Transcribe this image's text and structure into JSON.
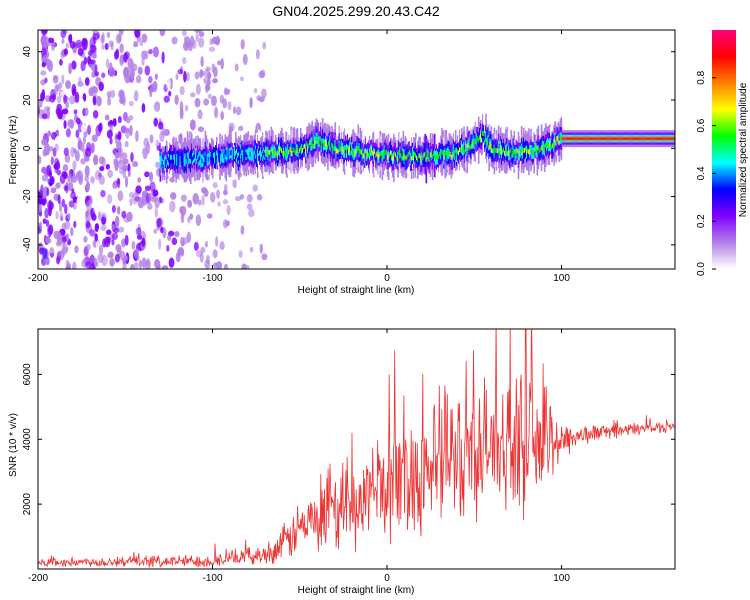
{
  "title": "GN04.2025.299.20.43.C42",
  "chart_data": [
    {
      "type": "heatmap",
      "name": "spectrogram",
      "xlabel": "Height of straight line (km)",
      "ylabel": "Frequency (Hz)",
      "xlim": [
        -200,
        165
      ],
      "ylim": [
        -50,
        49
      ],
      "xticks": [
        -200,
        -100,
        0,
        100
      ],
      "xtick_labels": [
        "-200",
        "-100",
        "0",
        "100"
      ],
      "yticks": [
        -40,
        -20,
        0,
        20,
        40
      ],
      "ytick_labels": [
        "-40",
        "-20",
        "0",
        "20",
        "40"
      ],
      "ridge": {
        "x": [
          -130,
          -110,
          -90,
          -70,
          -50,
          -40,
          -30,
          -20,
          -10,
          0,
          10,
          20,
          30,
          40,
          50,
          55,
          60,
          70,
          80,
          90,
          95,
          100,
          165
        ],
        "y": [
          -5,
          -4,
          -3,
          -2,
          -1,
          3,
          0,
          -1,
          -2,
          -3,
          -3,
          -4,
          -3,
          -2,
          2,
          5,
          0,
          -2,
          -1,
          0,
          2,
          4,
          4
        ]
      },
      "noise_band_x": [
        -200,
        -70
      ],
      "colorbar": {
        "label": "Normalized spectral amplitude",
        "range": [
          0.0,
          1.0
        ],
        "ticks": [
          0.0,
          0.2,
          0.4,
          0.6,
          0.8
        ],
        "tick_labels": [
          "0.0",
          "0.2",
          "0.4",
          "0.6",
          "0.8"
        ],
        "colors": [
          "#ffffff",
          "#b27fe6",
          "#7f00ff",
          "#0000ff",
          "#00ffff",
          "#00ff00",
          "#ffff00",
          "#ff7f00",
          "#ff0000",
          "#ff0080"
        ]
      }
    },
    {
      "type": "line",
      "name": "snr",
      "xlabel": "Height of straight line (km)",
      "ylabel": "SNR (10 * v/v)",
      "xlim": [
        -200,
        165
      ],
      "ylim": [
        0,
        7400
      ],
      "xticks": [
        -200,
        -100,
        0,
        100
      ],
      "xtick_labels": [
        "-200",
        "-100",
        "0",
        "100"
      ],
      "yticks": [
        2000,
        4000,
        6000
      ],
      "ytick_labels": [
        "2000",
        "4000",
        "6000"
      ],
      "color": "#ee3333",
      "envelope": {
        "x": [
          -200,
          -100,
          -80,
          -70,
          -60,
          -50,
          -40,
          -30,
          -20,
          -10,
          0,
          10,
          20,
          30,
          40,
          50,
          60,
          70,
          80,
          90,
          100,
          110,
          120,
          130,
          140,
          150,
          165
        ],
        "mean": [
          200,
          250,
          400,
          450,
          700,
          1300,
          1400,
          1600,
          1900,
          2300,
          2600,
          2800,
          3100,
          3300,
          3500,
          3700,
          3800,
          3900,
          3900,
          3900,
          4000,
          4100,
          4200,
          4250,
          4300,
          4350,
          4400
        ],
        "amplitude": [
          150,
          250,
          300,
          350,
          700,
          1000,
          1200,
          1300,
          1500,
          1800,
          2000,
          2200,
          2400,
          2600,
          2500,
          2400,
          2400,
          2300,
          2500,
          2000,
          800,
          400,
          300,
          250,
          250,
          220,
          200
        ]
      }
    }
  ]
}
